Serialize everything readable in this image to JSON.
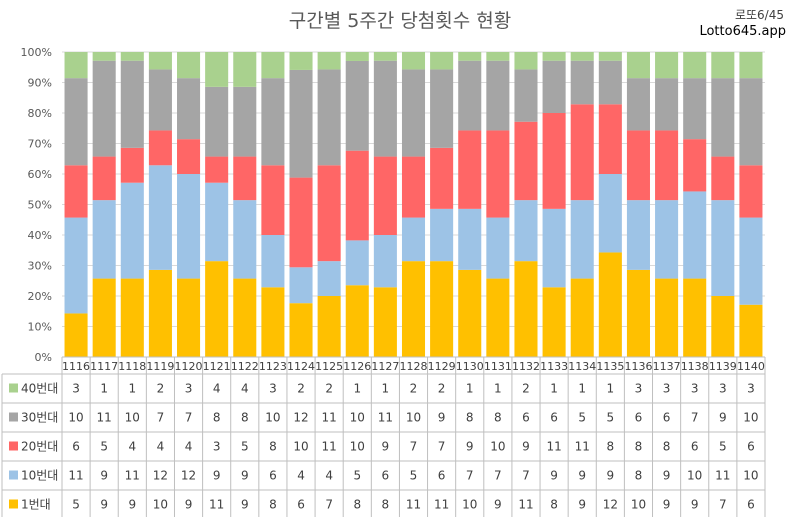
{
  "title": "구간별 5주간 당첨횟수 현황",
  "brand": {
    "line1": "로또6/45",
    "line2": "Lotto645.app"
  },
  "colors": {
    "band40": "#a9d18e",
    "band30": "#a5a5a5",
    "band20": "#ff6666",
    "band10": "#9dc3e6",
    "band1": "#ffc000",
    "grid": "#d9d9d9",
    "axis": "#bfbfbf"
  },
  "chart_data": {
    "type": "bar",
    "stacked": true,
    "normalized": true,
    "title": "구간별 5주간 당첨횟수 현황",
    "categories": [
      "1116",
      "1117",
      "1118",
      "1119",
      "1120",
      "1121",
      "1122",
      "1123",
      "1124",
      "1125",
      "1126",
      "1127",
      "1128",
      "1129",
      "1130",
      "1131",
      "1132",
      "1133",
      "1134",
      "1135",
      "1136",
      "1137",
      "1138",
      "1139",
      "1140"
    ],
    "yticks": [
      "0%",
      "10%",
      "20%",
      "30%",
      "40%",
      "50%",
      "60%",
      "70%",
      "80%",
      "90%",
      "100%"
    ],
    "ylim": [
      0,
      100
    ],
    "legend_placement": "table-left",
    "series": [
      {
        "name": "1번대",
        "color": "#ffc000",
        "values": [
          5,
          9,
          9,
          10,
          9,
          11,
          9,
          8,
          6,
          7,
          8,
          8,
          11,
          11,
          10,
          9,
          11,
          8,
          9,
          12,
          10,
          9,
          9,
          7,
          6
        ]
      },
      {
        "name": "10번대",
        "color": "#9dc3e6",
        "values": [
          11,
          9,
          11,
          12,
          12,
          9,
          9,
          6,
          4,
          4,
          5,
          6,
          5,
          6,
          7,
          7,
          7,
          9,
          9,
          9,
          8,
          9,
          10,
          11,
          10
        ]
      },
      {
        "name": "20번대",
        "color": "#ff6666",
        "values": [
          6,
          5,
          4,
          4,
          4,
          3,
          5,
          8,
          10,
          11,
          10,
          9,
          7,
          7,
          9,
          10,
          9,
          11,
          11,
          8,
          8,
          8,
          6,
          5,
          6
        ]
      },
      {
        "name": "30번대",
        "color": "#a5a5a5",
        "values": [
          10,
          11,
          10,
          7,
          7,
          8,
          8,
          10,
          12,
          11,
          10,
          11,
          10,
          9,
          8,
          8,
          6,
          6,
          5,
          5,
          6,
          6,
          7,
          9,
          10
        ]
      },
      {
        "name": "40번대",
        "color": "#a9d18e",
        "values": [
          3,
          1,
          1,
          2,
          3,
          4,
          4,
          3,
          2,
          2,
          1,
          1,
          2,
          2,
          1,
          1,
          2,
          1,
          1,
          1,
          3,
          3,
          3,
          3,
          3
        ]
      }
    ]
  }
}
